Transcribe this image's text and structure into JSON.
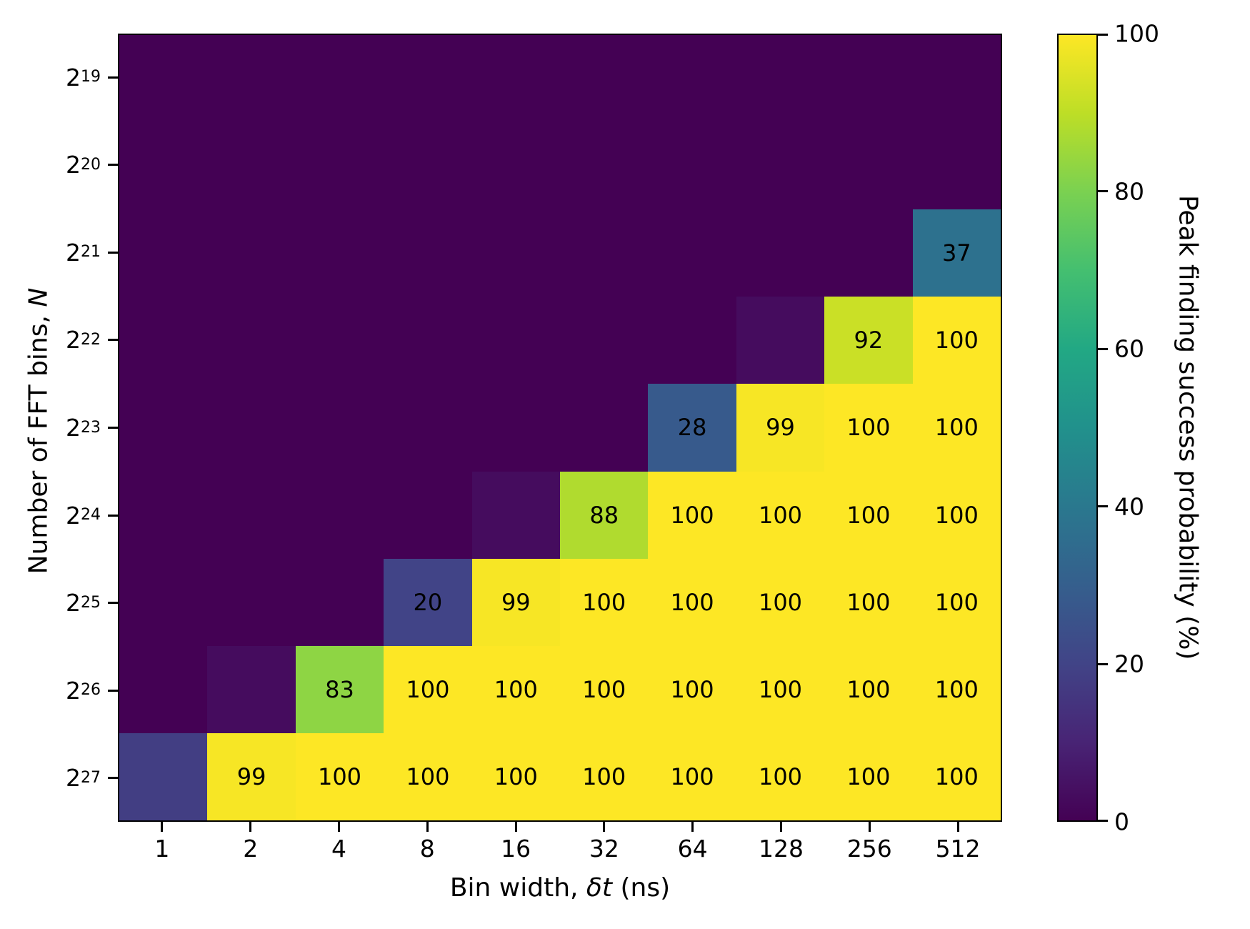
{
  "chart_data": {
    "type": "heatmap",
    "xlabel_prefix": "Bin width, ",
    "xlabel_italic": "δt",
    "xlabel_suffix": " (ns)",
    "ylabel_prefix": "Number of FFT bins, ",
    "ylabel_italic": "N",
    "colorbar_label": "Peak finding success probability (%)",
    "x_categories": [
      "1",
      "2",
      "4",
      "8",
      "16",
      "32",
      "64",
      "128",
      "256",
      "512"
    ],
    "y_tick_base": "2",
    "y_exponents": [
      "19",
      "20",
      "21",
      "22",
      "23",
      "24",
      "25",
      "26",
      "27"
    ],
    "values": [
      [
        0,
        0,
        0,
        0,
        0,
        0,
        0,
        0,
        0,
        0
      ],
      [
        0,
        0,
        0,
        0,
        0,
        0,
        0,
        0,
        0,
        0
      ],
      [
        0,
        0,
        0,
        0,
        0,
        0,
        0,
        0,
        0,
        37
      ],
      [
        0,
        0,
        0,
        0,
        0,
        0,
        0,
        3,
        92,
        100
      ],
      [
        0,
        0,
        0,
        0,
        0,
        0,
        28,
        99,
        100,
        100
      ],
      [
        0,
        0,
        0,
        0,
        3,
        88,
        100,
        100,
        100,
        100
      ],
      [
        0,
        0,
        0,
        20,
        99,
        100,
        100,
        100,
        100,
        100
      ],
      [
        0,
        3,
        83,
        100,
        100,
        100,
        100,
        100,
        100,
        100
      ],
      [
        18,
        99,
        100,
        100,
        100,
        100,
        100,
        100,
        100,
        100
      ]
    ],
    "annotation_threshold": 20,
    "vmin": 0,
    "vmax": 100,
    "colorbar_ticks": [
      0,
      20,
      40,
      60,
      80,
      100
    ],
    "colormap_name": "viridis",
    "colormap_stops": [
      [
        0.0,
        "#440154"
      ],
      [
        0.1,
        "#482475"
      ],
      [
        0.2,
        "#414487"
      ],
      [
        0.3,
        "#355f8d"
      ],
      [
        0.4,
        "#2a788e"
      ],
      [
        0.5,
        "#21918c"
      ],
      [
        0.6,
        "#22a884"
      ],
      [
        0.7,
        "#44bf70"
      ],
      [
        0.8,
        "#7ad151"
      ],
      [
        0.9,
        "#bdde26"
      ],
      [
        1.0,
        "#fde725"
      ]
    ],
    "text_color": "#000000",
    "background_color": "#ffffff"
  }
}
